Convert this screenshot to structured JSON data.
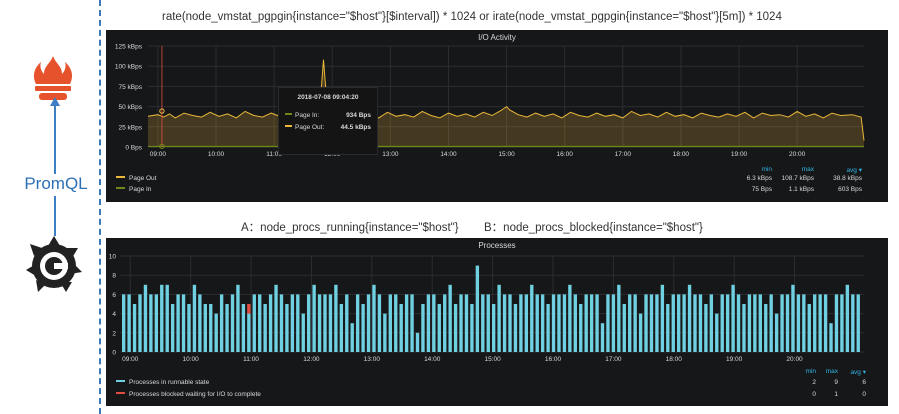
{
  "top_caption": "rate(node_vmstat_pgpgin{instance=\"$host\"}[$interval]) * 1024 or irate(node_vmstat_pgpgin{instance=\"$host\"}[5m]) * 1024",
  "side_label": "PromQL",
  "mid_caption_a": "A：node_procs_running{instance=\"$host\"}",
  "mid_caption_b": "B：node_procs_blocked{instance=\"$host\"}",
  "colors": {
    "page_out": "#eab839",
    "page_in": "#6d8a18",
    "runnable": "#6ed0e0",
    "blocked": "#e24d42",
    "panel_bg": "#161719",
    "grid": "#2c2d30",
    "legend_header": "#33b5e5"
  },
  "chart_data": [
    {
      "type": "area",
      "title": "I/O Activity",
      "xlabel": "",
      "ylabel": "",
      "x_ticks": [
        "09:00",
        "10:00",
        "11:00",
        "12:00",
        "13:00",
        "14:00",
        "15:00",
        "16:00",
        "17:00",
        "18:00",
        "19:00",
        "20:00"
      ],
      "y_ticks": [
        "0 Bps",
        "25 kBps",
        "50 kBps",
        "75 kBps",
        "100 kBps",
        "125 kBps"
      ],
      "ylim": [
        0,
        125
      ],
      "y_unit": "kBps",
      "grid": true,
      "legend": {
        "placement": "bottom",
        "headers": {
          "min": "min",
          "max": "max",
          "avg": "avg ▾"
        },
        "entries": [
          {
            "name": "Page Out",
            "min": "6.3 kBps",
            "max": "108.7 kBps",
            "avg": "38.8 kBps"
          },
          {
            "name": "Page In",
            "min": "75 Bps",
            "max": "1.1 kBps",
            "avg": "603 Bps"
          }
        ]
      },
      "tooltip": {
        "time": "2018-07-08 09:04:20",
        "rows": [
          {
            "label": "Page In:",
            "value": "934 Bps"
          },
          {
            "label": "Page Out:",
            "value": "44.5 kBps"
          }
        ]
      },
      "series": [
        {
          "name": "Page Out",
          "x_hours": [
            8.83,
            9.0,
            9.1,
            9.2,
            9.3,
            9.45,
            9.6,
            9.75,
            9.9,
            10.05,
            10.2,
            10.35,
            10.5,
            10.65,
            10.8,
            10.95,
            11.1,
            11.25,
            11.4,
            11.55,
            11.7,
            11.8,
            11.85,
            11.9,
            11.95,
            12.05,
            12.2,
            12.35,
            12.5,
            12.65,
            12.8,
            12.95,
            13.1,
            13.25,
            13.4,
            13.55,
            13.7,
            13.85,
            14.0,
            14.15,
            14.3,
            14.45,
            14.6,
            14.75,
            14.9,
            15.0,
            15.05,
            15.2,
            15.35,
            15.5,
            15.65,
            15.8,
            15.95,
            16.1,
            16.25,
            16.4,
            16.55,
            16.7,
            16.85,
            17.0,
            17.15,
            17.3,
            17.45,
            17.6,
            17.75,
            17.9,
            18.05,
            18.2,
            18.35,
            18.5,
            18.65,
            18.8,
            18.95,
            19.1,
            19.25,
            19.4,
            19.55,
            19.7,
            19.85,
            20.0,
            20.15,
            20.3,
            20.45,
            20.6,
            20.75,
            20.95,
            21.1,
            21.15
          ],
          "values": [
            38,
            40,
            37,
            41,
            36,
            42,
            39,
            37,
            43,
            38,
            41,
            36,
            44,
            39,
            37,
            42,
            38,
            40,
            36,
            43,
            39,
            60,
            108,
            62,
            42,
            38,
            41,
            37,
            42,
            39,
            36,
            43,
            38,
            40,
            37,
            44,
            39,
            36,
            42,
            38,
            41,
            37,
            43,
            39,
            45,
            50,
            46,
            40,
            37,
            42,
            38,
            41,
            36,
            43,
            39,
            37,
            42,
            38,
            40,
            36,
            44,
            39,
            41,
            37,
            43,
            38,
            40,
            36,
            42,
            39,
            37,
            41,
            38,
            43,
            36,
            42,
            39,
            40,
            37,
            44,
            38,
            41,
            36,
            42,
            39,
            40,
            37,
            8
          ]
        },
        {
          "name": "Page In",
          "x_hours": [
            8.83,
            21.15
          ],
          "values": [
            0.6,
            0.6
          ]
        }
      ]
    },
    {
      "type": "bar",
      "title": "Processes",
      "xlabel": "",
      "ylabel": "",
      "x_ticks": [
        "09:00",
        "10:00",
        "11:00",
        "12:00",
        "13:00",
        "14:00",
        "15:00",
        "16:00",
        "17:00",
        "18:00",
        "19:00",
        "20:00"
      ],
      "y_ticks": [
        "0",
        "2",
        "4",
        "6",
        "8",
        "10"
      ],
      "ylim": [
        0,
        10
      ],
      "grid": true,
      "legend": {
        "placement": "bottom",
        "headers": {
          "min": "min",
          "max": "max",
          "avg": "avg ▾"
        },
        "entries": [
          {
            "name": "Processes in runnable state",
            "min": "2",
            "max": "9",
            "avg": "6"
          },
          {
            "name": "Processes blocked waiting for I/O to complete",
            "min": "0",
            "max": "1",
            "avg": "0"
          }
        ]
      },
      "x_start_hour": 8.9,
      "x_step_hour": 0.1,
      "series": [
        {
          "name": "Processes in runnable state",
          "values": [
            6,
            6,
            5,
            6,
            7,
            6,
            6,
            7,
            7,
            5,
            6,
            6,
            5,
            7,
            6,
            5,
            5,
            4,
            6,
            5,
            6,
            7,
            5,
            4,
            6,
            6,
            5,
            6,
            7,
            6,
            5,
            6,
            6,
            4,
            6,
            7,
            6,
            6,
            6,
            7,
            5,
            6,
            3,
            6,
            5,
            6,
            7,
            6,
            4,
            6,
            6,
            5,
            6,
            6,
            2,
            5,
            6,
            6,
            5,
            6,
            7,
            5,
            6,
            6,
            5,
            9,
            6,
            6,
            5,
            7,
            6,
            6,
            5,
            6,
            6,
            7,
            6,
            6,
            5,
            6,
            6,
            6,
            7,
            6,
            5,
            6,
            6,
            6,
            3,
            6,
            6,
            7,
            5,
            6,
            6,
            4,
            6,
            6,
            6,
            7,
            5,
            6,
            6,
            6,
            7,
            6,
            6,
            5,
            6,
            4,
            6,
            6,
            7,
            6,
            5,
            6,
            6,
            6,
            5,
            6,
            4,
            6,
            6,
            7,
            6,
            6,
            5,
            6,
            6,
            6,
            3,
            6,
            6,
            7,
            6,
            6
          ],
          "blocked_index": 23
        },
        {
          "name": "Processes blocked waiting for I/O to complete",
          "values_note_index": 23,
          "peak": 1
        }
      ]
    }
  ]
}
